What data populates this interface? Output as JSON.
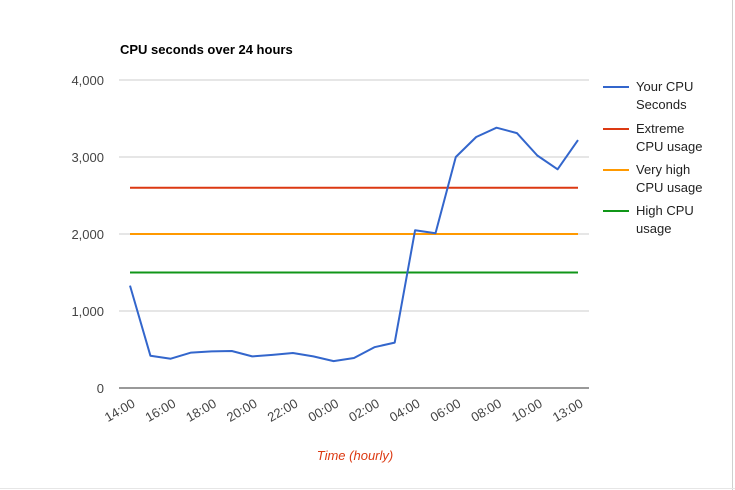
{
  "chart_data": {
    "type": "line",
    "title": "CPU seconds over 24 hours",
    "xlabel": "Time (hourly)",
    "ylabel": "",
    "ylim": [
      0,
      4000
    ],
    "yticks": [
      "0",
      "1,000",
      "2,000",
      "3,000",
      "4,000"
    ],
    "ytick_values": [
      0,
      1000,
      2000,
      3000,
      4000
    ],
    "xtick_labels": [
      "14:00",
      "16:00",
      "18:00",
      "20:00",
      "22:00",
      "00:00",
      "02:00",
      "04:00",
      "06:00",
      "08:00",
      "10:00",
      "13:00"
    ],
    "grid": true,
    "legend_position": "right",
    "x": [
      "14:00",
      "15:00",
      "16:00",
      "17:00",
      "18:00",
      "19:00",
      "20:00",
      "21:00",
      "22:00",
      "23:00",
      "00:00",
      "01:00",
      "02:00",
      "03:00",
      "04:00",
      "05:00",
      "06:00",
      "07:00",
      "08:00",
      "09:00",
      "10:00",
      "11:00",
      "13:00"
    ],
    "series": [
      {
        "name": "Your CPU Seconds",
        "color": "#3366cc",
        "values": [
          1330,
          420,
          380,
          460,
          475,
          480,
          410,
          430,
          455,
          410,
          350,
          390,
          530,
          590,
          2050,
          2010,
          3000,
          3260,
          3380,
          3310,
          3020,
          2840,
          3220
        ]
      },
      {
        "name": "Extreme CPU usage",
        "color": "#dc3912",
        "values": [
          2600,
          2600,
          2600,
          2600,
          2600,
          2600,
          2600,
          2600,
          2600,
          2600,
          2600,
          2600,
          2600,
          2600,
          2600,
          2600,
          2600,
          2600,
          2600,
          2600,
          2600,
          2600,
          2600
        ]
      },
      {
        "name": "Very high CPU usage",
        "color": "#ff9900",
        "values": [
          2000,
          2000,
          2000,
          2000,
          2000,
          2000,
          2000,
          2000,
          2000,
          2000,
          2000,
          2000,
          2000,
          2000,
          2000,
          2000,
          2000,
          2000,
          2000,
          2000,
          2000,
          2000,
          2000
        ]
      },
      {
        "name": "High CPU usage",
        "color": "#109618",
        "values": [
          1500,
          1500,
          1500,
          1500,
          1500,
          1500,
          1500,
          1500,
          1500,
          1500,
          1500,
          1500,
          1500,
          1500,
          1500,
          1500,
          1500,
          1500,
          1500,
          1500,
          1500,
          1500,
          1500
        ]
      }
    ],
    "legend": [
      {
        "lines": [
          "Your CPU",
          "Seconds"
        ]
      },
      {
        "lines": [
          "Extreme",
          "CPU usage"
        ]
      },
      {
        "lines": [
          "Very high",
          "CPU usage"
        ]
      },
      {
        "lines": [
          "High CPU",
          "usage"
        ]
      }
    ],
    "colors": {
      "grid": "#cccccc",
      "axis": "#333333",
      "tick_text": "#444444",
      "xlabel_text": "#dc3912"
    }
  }
}
